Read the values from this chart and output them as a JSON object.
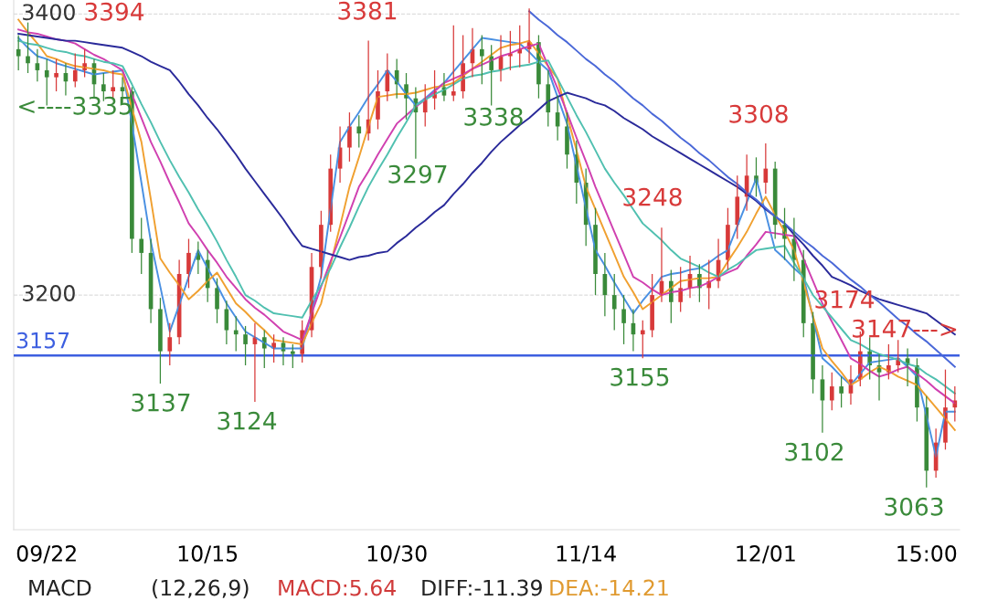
{
  "chart_data": {
    "type": "candlestick",
    "categories": [
      null,
      null,
      null,
      "09/22",
      null,
      null,
      null,
      null,
      null,
      null,
      null,
      null,
      null,
      null,
      null,
      null,
      null,
      null,
      null,
      null,
      "10/15",
      null,
      null,
      null,
      null,
      null,
      null,
      null,
      null,
      null,
      null,
      null,
      null,
      null,
      null,
      null,
      null,
      null,
      null,
      null,
      "10/30",
      null,
      null,
      null,
      null,
      null,
      null,
      null,
      null,
      null,
      null,
      null,
      null,
      null,
      null,
      null,
      null,
      null,
      null,
      null,
      "11/14",
      null,
      null,
      null,
      null,
      null,
      null,
      null,
      null,
      null,
      null,
      null,
      null,
      null,
      null,
      null,
      null,
      null,
      null,
      "12/01",
      null,
      null,
      null,
      null,
      null,
      null,
      null,
      null,
      null,
      null,
      null,
      null,
      null,
      null,
      null,
      null,
      "15:00",
      null,
      null,
      null
    ],
    "ohlc": [
      [
        3375,
        3385,
        3360,
        3370
      ],
      [
        3370,
        3394,
        3358,
        3365
      ],
      [
        3365,
        3375,
        3352,
        3360
      ],
      [
        3360,
        3368,
        3335,
        3355
      ],
      [
        3355,
        3368,
        3345,
        3358
      ],
      [
        3358,
        3365,
        3342,
        3352
      ],
      [
        3352,
        3372,
        3348,
        3360
      ],
      [
        3360,
        3375,
        3355,
        3365
      ],
      [
        3365,
        3368,
        3340,
        3350
      ],
      [
        3350,
        3358,
        3338,
        3345
      ],
      [
        3345,
        3360,
        3340,
        3348
      ],
      [
        3348,
        3355,
        3336,
        3345
      ],
      [
        3345,
        3348,
        3230,
        3240
      ],
      [
        3240,
        3255,
        3215,
        3230
      ],
      [
        3230,
        3240,
        3180,
        3190
      ],
      [
        3190,
        3198,
        3137,
        3160
      ],
      [
        3160,
        3180,
        3150,
        3170
      ],
      [
        3170,
        3225,
        3165,
        3215
      ],
      [
        3215,
        3240,
        3205,
        3230
      ],
      [
        3230,
        3238,
        3215,
        3225
      ],
      [
        3225,
        3232,
        3195,
        3205
      ],
      [
        3205,
        3212,
        3180,
        3190
      ],
      [
        3190,
        3196,
        3165,
        3175
      ],
      [
        3175,
        3185,
        3160,
        3172
      ],
      [
        3172,
        3178,
        3150,
        3165
      ],
      [
        3165,
        3180,
        3124,
        3170
      ],
      [
        3170,
        3175,
        3148,
        3162
      ],
      [
        3162,
        3172,
        3152,
        3166
      ],
      [
        3166,
        3170,
        3150,
        3160
      ],
      [
        3160,
        3165,
        3148,
        3158
      ],
      [
        3158,
        3182,
        3152,
        3175
      ],
      [
        3175,
        3230,
        3170,
        3220
      ],
      [
        3220,
        3260,
        3212,
        3250
      ],
      [
        3250,
        3300,
        3245,
        3290
      ],
      [
        3290,
        3320,
        3280,
        3305
      ],
      [
        3305,
        3330,
        3295,
        3320
      ],
      [
        3320,
        3328,
        3305,
        3315
      ],
      [
        3315,
        3381,
        3310,
        3325
      ],
      [
        3325,
        3360,
        3318,
        3345
      ],
      [
        3345,
        3372,
        3338,
        3360
      ],
      [
        3360,
        3368,
        3340,
        3350
      ],
      [
        3350,
        3358,
        3325,
        3340
      ],
      [
        3340,
        3348,
        3297,
        3330
      ],
      [
        3330,
        3350,
        3320,
        3340
      ],
      [
        3340,
        3360,
        3332,
        3345
      ],
      [
        3348,
        3358,
        3338,
        3342
      ],
      [
        3342,
        3392,
        3338,
        3345
      ],
      [
        3345,
        3385,
        3340,
        3365
      ],
      [
        3365,
        3390,
        3355,
        3375
      ],
      [
        3375,
        3385,
        3350,
        3370
      ],
      [
        3370,
        3378,
        3335,
        3360
      ],
      [
        3360,
        3385,
        3352,
        3370
      ],
      [
        3370,
        3388,
        3360,
        3372
      ],
      [
        3372,
        3392,
        3362,
        3375
      ],
      [
        3375,
        3404,
        3365,
        3380
      ],
      [
        3380,
        3385,
        3340,
        3350
      ],
      [
        3350,
        3360,
        3320,
        3330
      ],
      [
        3330,
        3342,
        3310,
        3320
      ],
      [
        3320,
        3330,
        3290,
        3300
      ],
      [
        3300,
        3310,
        3265,
        3280
      ],
      [
        3280,
        3290,
        3235,
        3250
      ],
      [
        3250,
        3262,
        3200,
        3215
      ],
      [
        3215,
        3230,
        3185,
        3200
      ],
      [
        3200,
        3215,
        3175,
        3190
      ],
      [
        3190,
        3200,
        3165,
        3180
      ],
      [
        3180,
        3190,
        3160,
        3172
      ],
      [
        3172,
        3182,
        3155,
        3175
      ],
      [
        3175,
        3215,
        3170,
        3200
      ],
      [
        3200,
        3248,
        3195,
        3210
      ],
      [
        3210,
        3218,
        3180,
        3195
      ],
      [
        3195,
        3220,
        3188,
        3205
      ],
      [
        3205,
        3228,
        3198,
        3215
      ],
      [
        3215,
        3222,
        3195,
        3205
      ],
      [
        3205,
        3225,
        3190,
        3210
      ],
      [
        3210,
        3240,
        3205,
        3225
      ],
      [
        3225,
        3262,
        3218,
        3250
      ],
      [
        3250,
        3285,
        3240,
        3270
      ],
      [
        3270,
        3300,
        3260,
        3285
      ],
      [
        3285,
        3298,
        3270,
        3280
      ],
      [
        3280,
        3308,
        3272,
        3290
      ],
      [
        3290,
        3295,
        3240,
        3250
      ],
      [
        3250,
        3262,
        3225,
        3240
      ],
      [
        3240,
        3255,
        3210,
        3225
      ],
      [
        3225,
        3232,
        3170,
        3180
      ],
      [
        3180,
        3188,
        3130,
        3140
      ],
      [
        3140,
        3150,
        3102,
        3125
      ],
      [
        3125,
        3145,
        3118,
        3135
      ],
      [
        3135,
        3142,
        3120,
        3130
      ],
      [
        3130,
        3150,
        3122,
        3140
      ],
      [
        3140,
        3174,
        3135,
        3160
      ],
      [
        3160,
        3170,
        3140,
        3150
      ],
      [
        3150,
        3158,
        3125,
        3145
      ],
      [
        3145,
        3165,
        3140,
        3150
      ],
      [
        3150,
        3168,
        3145,
        3155
      ],
      [
        3155,
        3162,
        3135,
        3150
      ],
      [
        3150,
        3155,
        3110,
        3120
      ],
      [
        3120,
        3128,
        3063,
        3075
      ],
      [
        3075,
        3105,
        3070,
        3095
      ],
      [
        3095,
        3147,
        3090,
        3120
      ],
      [
        3120,
        3135,
        3110,
        3125
      ]
    ],
    "series": [
      {
        "type": "line",
        "color": "#4a90e2",
        "values": [
          3383,
          3376,
          3370,
          3368,
          3365,
          3363,
          3361,
          3359,
          3357,
          3358,
          3359,
          3360,
          3322,
          3280,
          3238,
          3206,
          3174,
          3193,
          3213,
          3232,
          3219,
          3207,
          3194,
          3184,
          3174,
          3170,
          3166,
          3162,
          3162,
          3162,
          3162,
          3188,
          3213,
          3261,
          3309,
          3320,
          3330,
          3341,
          3350,
          3360,
          3352,
          3343,
          3335,
          3340,
          3346,
          3351,
          3359,
          3367,
          3375,
          3383,
          3382,
          3381,
          3380,
          3379,
          3373,
          3366,
          3360,
          3341,
          3322,
          3292,
          3262,
          3232,
          3221,
          3209,
          3198,
          3187,
          3196,
          3204,
          3213,
          3215,
          3216,
          3218,
          3219,
          3223,
          3228,
          3232,
          3249,
          3266,
          3283,
          3258,
          3232,
          3226,
          3219,
          3213,
          3184,
          3155,
          3149,
          3142,
          3136,
          3144,
          3152,
          3153,
          3154,
          3155,
          3149,
          3142,
          3114,
          3085,
          3117,
          3117
        ]
      },
      {
        "type": "line",
        "color": "#f0a030",
        "values": [
          3396,
          3387,
          3379,
          3370,
          3368,
          3365,
          3363,
          3362,
          3361,
          3360,
          3358,
          3357,
          3333,
          3309,
          3268,
          3226,
          3216,
          3207,
          3197,
          3203,
          3210,
          3216,
          3205,
          3194,
          3188,
          3181,
          3175,
          3168,
          3167,
          3166,
          3165,
          3180,
          3194,
          3222,
          3249,
          3277,
          3298,
          3320,
          3341,
          3342,
          3343,
          3343,
          3344,
          3346,
          3348,
          3349,
          3351,
          3356,
          3361,
          3366,
          3371,
          3376,
          3378,
          3379,
          3381,
          3372,
          3363,
          3354,
          3328,
          3303,
          3277,
          3261,
          3245,
          3229,
          3213,
          3202,
          3190,
          3195,
          3200,
          3205,
          3210,
          3211,
          3212,
          3212,
          3213,
          3224,
          3234,
          3245,
          3258,
          3270,
          3257,
          3245,
          3232,
          3209,
          3185,
          3162,
          3153,
          3145,
          3136,
          3140,
          3145,
          3149,
          3146,
          3142,
          3139,
          3136,
          3128,
          3120,
          3112,
          3104
        ]
      },
      {
        "type": "line",
        "color": "#d040b0",
        "values": [
          3389,
          3387,
          3386,
          3384,
          3382,
          3381,
          3379,
          3375,
          3371,
          3368,
          3364,
          3360,
          3343,
          3326,
          3309,
          3295,
          3280,
          3266,
          3251,
          3242,
          3232,
          3223,
          3213,
          3205,
          3197,
          3191,
          3186,
          3180,
          3174,
          3171,
          3168,
          3187,
          3206,
          3224,
          3241,
          3259,
          3277,
          3288,
          3300,
          3311,
          3322,
          3328,
          3334,
          3339,
          3345,
          3351,
          3354,
          3357,
          3361,
          3364,
          3367,
          3370,
          3372,
          3375,
          3377,
          3379,
          3363,
          3347,
          3330,
          3312,
          3295,
          3277,
          3261,
          3245,
          3229,
          3213,
          3209,
          3204,
          3200,
          3202,
          3203,
          3205,
          3206,
          3209,
          3213,
          3216,
          3219,
          3228,
          3236,
          3245,
          3244,
          3243,
          3242,
          3226,
          3210,
          3194,
          3181,
          3168,
          3155,
          3151,
          3146,
          3142,
          3144,
          3147,
          3149,
          3144,
          3139,
          3133,
          3128,
          3123
        ]
      },
      {
        "type": "line",
        "color": "#50c0b0",
        "values": [
          3381,
          3379,
          3378,
          3376,
          3374,
          3373,
          3371,
          3370,
          3368,
          3366,
          3365,
          3363,
          3350,
          3336,
          3323,
          3309,
          3296,
          3284,
          3273,
          3261,
          3250,
          3238,
          3225,
          3213,
          3200,
          3196,
          3191,
          3187,
          3186,
          3185,
          3184,
          3196,
          3207,
          3219,
          3234,
          3248,
          3263,
          3277,
          3289,
          3300,
          3312,
          3323,
          3335,
          3339,
          3343,
          3346,
          3350,
          3354,
          3356,
          3357,
          3359,
          3360,
          3362,
          3363,
          3364,
          3366,
          3367,
          3354,
          3341,
          3328,
          3316,
          3303,
          3290,
          3280,
          3271,
          3261,
          3251,
          3245,
          3239,
          3232,
          3226,
          3223,
          3220,
          3216,
          3213,
          3218,
          3222,
          3227,
          3232,
          3233,
          3234,
          3235,
          3223,
          3212,
          3200,
          3192,
          3184,
          3176,
          3168,
          3165,
          3161,
          3158,
          3156,
          3154,
          3151,
          3149,
          3144,
          3140,
          3135,
          3130
        ]
      },
      {
        "type": "line",
        "color": "#2a2a9a",
        "values": [
          3386,
          3385,
          3384,
          3383,
          3382,
          3381,
          3381,
          3380,
          3379,
          3378,
          3377,
          3376,
          3373,
          3370,
          3366,
          3363,
          3360,
          3352,
          3343,
          3335,
          3326,
          3318,
          3309,
          3300,
          3290,
          3281,
          3272,
          3263,
          3254,
          3244,
          3235,
          3233,
          3231,
          3229,
          3227,
          3225,
          3227,
          3228,
          3230,
          3231,
          3237,
          3242,
          3248,
          3253,
          3259,
          3264,
          3272,
          3279,
          3287,
          3294,
          3302,
          3309,
          3315,
          3321,
          3326,
          3332,
          3338,
          3341,
          3344,
          3342,
          3340,
          3337,
          3335,
          3331,
          3326,
          3322,
          3318,
          3313,
          3309,
          3305,
          3301,
          3297,
          3293,
          3289,
          3285,
          3281,
          3277,
          3272,
          3267,
          3261,
          3256,
          3251,
          3243,
          3236,
          3228,
          3221,
          3213,
          3210,
          3207,
          3203,
          3200,
          3197,
          3195,
          3193,
          3191,
          3189,
          3187,
          3182,
          3177,
          3172
        ]
      },
      {
        "type": "line",
        "color": "#4a68d8",
        "values": [
          null,
          null,
          null,
          null,
          null,
          null,
          null,
          null,
          null,
          null,
          null,
          null,
          null,
          null,
          null,
          null,
          null,
          null,
          null,
          null,
          null,
          null,
          null,
          null,
          null,
          null,
          null,
          null,
          null,
          null,
          null,
          null,
          null,
          null,
          null,
          null,
          null,
          null,
          null,
          null,
          null,
          null,
          null,
          null,
          null,
          null,
          null,
          null,
          null,
          null,
          null,
          null,
          null,
          null,
          3402,
          3396,
          3391,
          3385,
          3380,
          3374,
          3368,
          3363,
          3357,
          3352,
          3346,
          3340,
          3335,
          3329,
          3324,
          3318,
          3312,
          3307,
          3301,
          3296,
          3290,
          3284,
          3279,
          3273,
          3268,
          3262,
          3256,
          3251,
          3245,
          3239,
          3234,
          3228,
          3223,
          3217,
          3211,
          3206,
          3200,
          3195,
          3189,
          3183,
          3178,
          3172,
          3167,
          3161,
          3155,
          3149
        ]
      }
    ],
    "ref_lines": [
      {
        "axis": "y",
        "value": 3157,
        "label": "3157",
        "color": "#3d5fe0"
      }
    ],
    "annotations": [
      "3394",
      "<----3335",
      "3381",
      "3297",
      "3338",
      "3137",
      "3124",
      "3155",
      "3248",
      "3308",
      "3102",
      "3174",
      "3063",
      "3147--->",
      "MACD",
      "(12,26,9)",
      "MACD:5.64",
      "DIFF:-11.39",
      "DEA:-14.21"
    ],
    "ylim": [
      3033,
      3410
    ],
    "yticks": [
      3200,
      3400
    ],
    "grid": "y"
  }
}
